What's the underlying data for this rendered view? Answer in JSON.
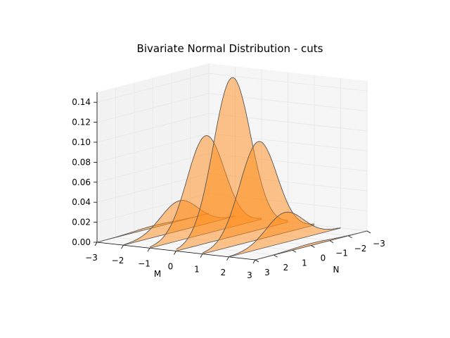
{
  "chart_data": {
    "type": "area",
    "subtype": "3d-slices",
    "title": "Bivariate Normal Distribution - cuts",
    "xlabel": "M",
    "ylabel": "N",
    "zlabel": "",
    "x_ticks": [
      "−3",
      "−2",
      "−1",
      "0",
      "1",
      "2",
      "3"
    ],
    "y_ticks": [
      "−3",
      "−2",
      "−1",
      "0",
      "1",
      "2",
      "3"
    ],
    "z_ticks": [
      "0.00",
      "0.02",
      "0.04",
      "0.06",
      "0.08",
      "0.10",
      "0.12",
      "0.14"
    ],
    "xlim": [
      -3,
      3
    ],
    "ylim": [
      -3,
      3
    ],
    "zlim": [
      0,
      0.15
    ],
    "grid": true,
    "fill_color": "#ff8c1a",
    "edge_color": "#555555",
    "pane_color": "#f2f2f2",
    "slice_axis": "M",
    "slice_positions_M": [
      -3,
      -2,
      -1,
      0,
      1,
      2,
      3
    ],
    "series": [
      {
        "M": -3,
        "peak_density": 0.002
      },
      {
        "M": -2,
        "peak_density": 0.03
      },
      {
        "M": -1,
        "peak_density": 0.098
      },
      {
        "M": 0,
        "peak_density": 0.159
      },
      {
        "M": 1,
        "peak_density": 0.098
      },
      {
        "M": 2,
        "peak_density": 0.03
      },
      {
        "M": 3,
        "peak_density": 0.002
      }
    ]
  }
}
